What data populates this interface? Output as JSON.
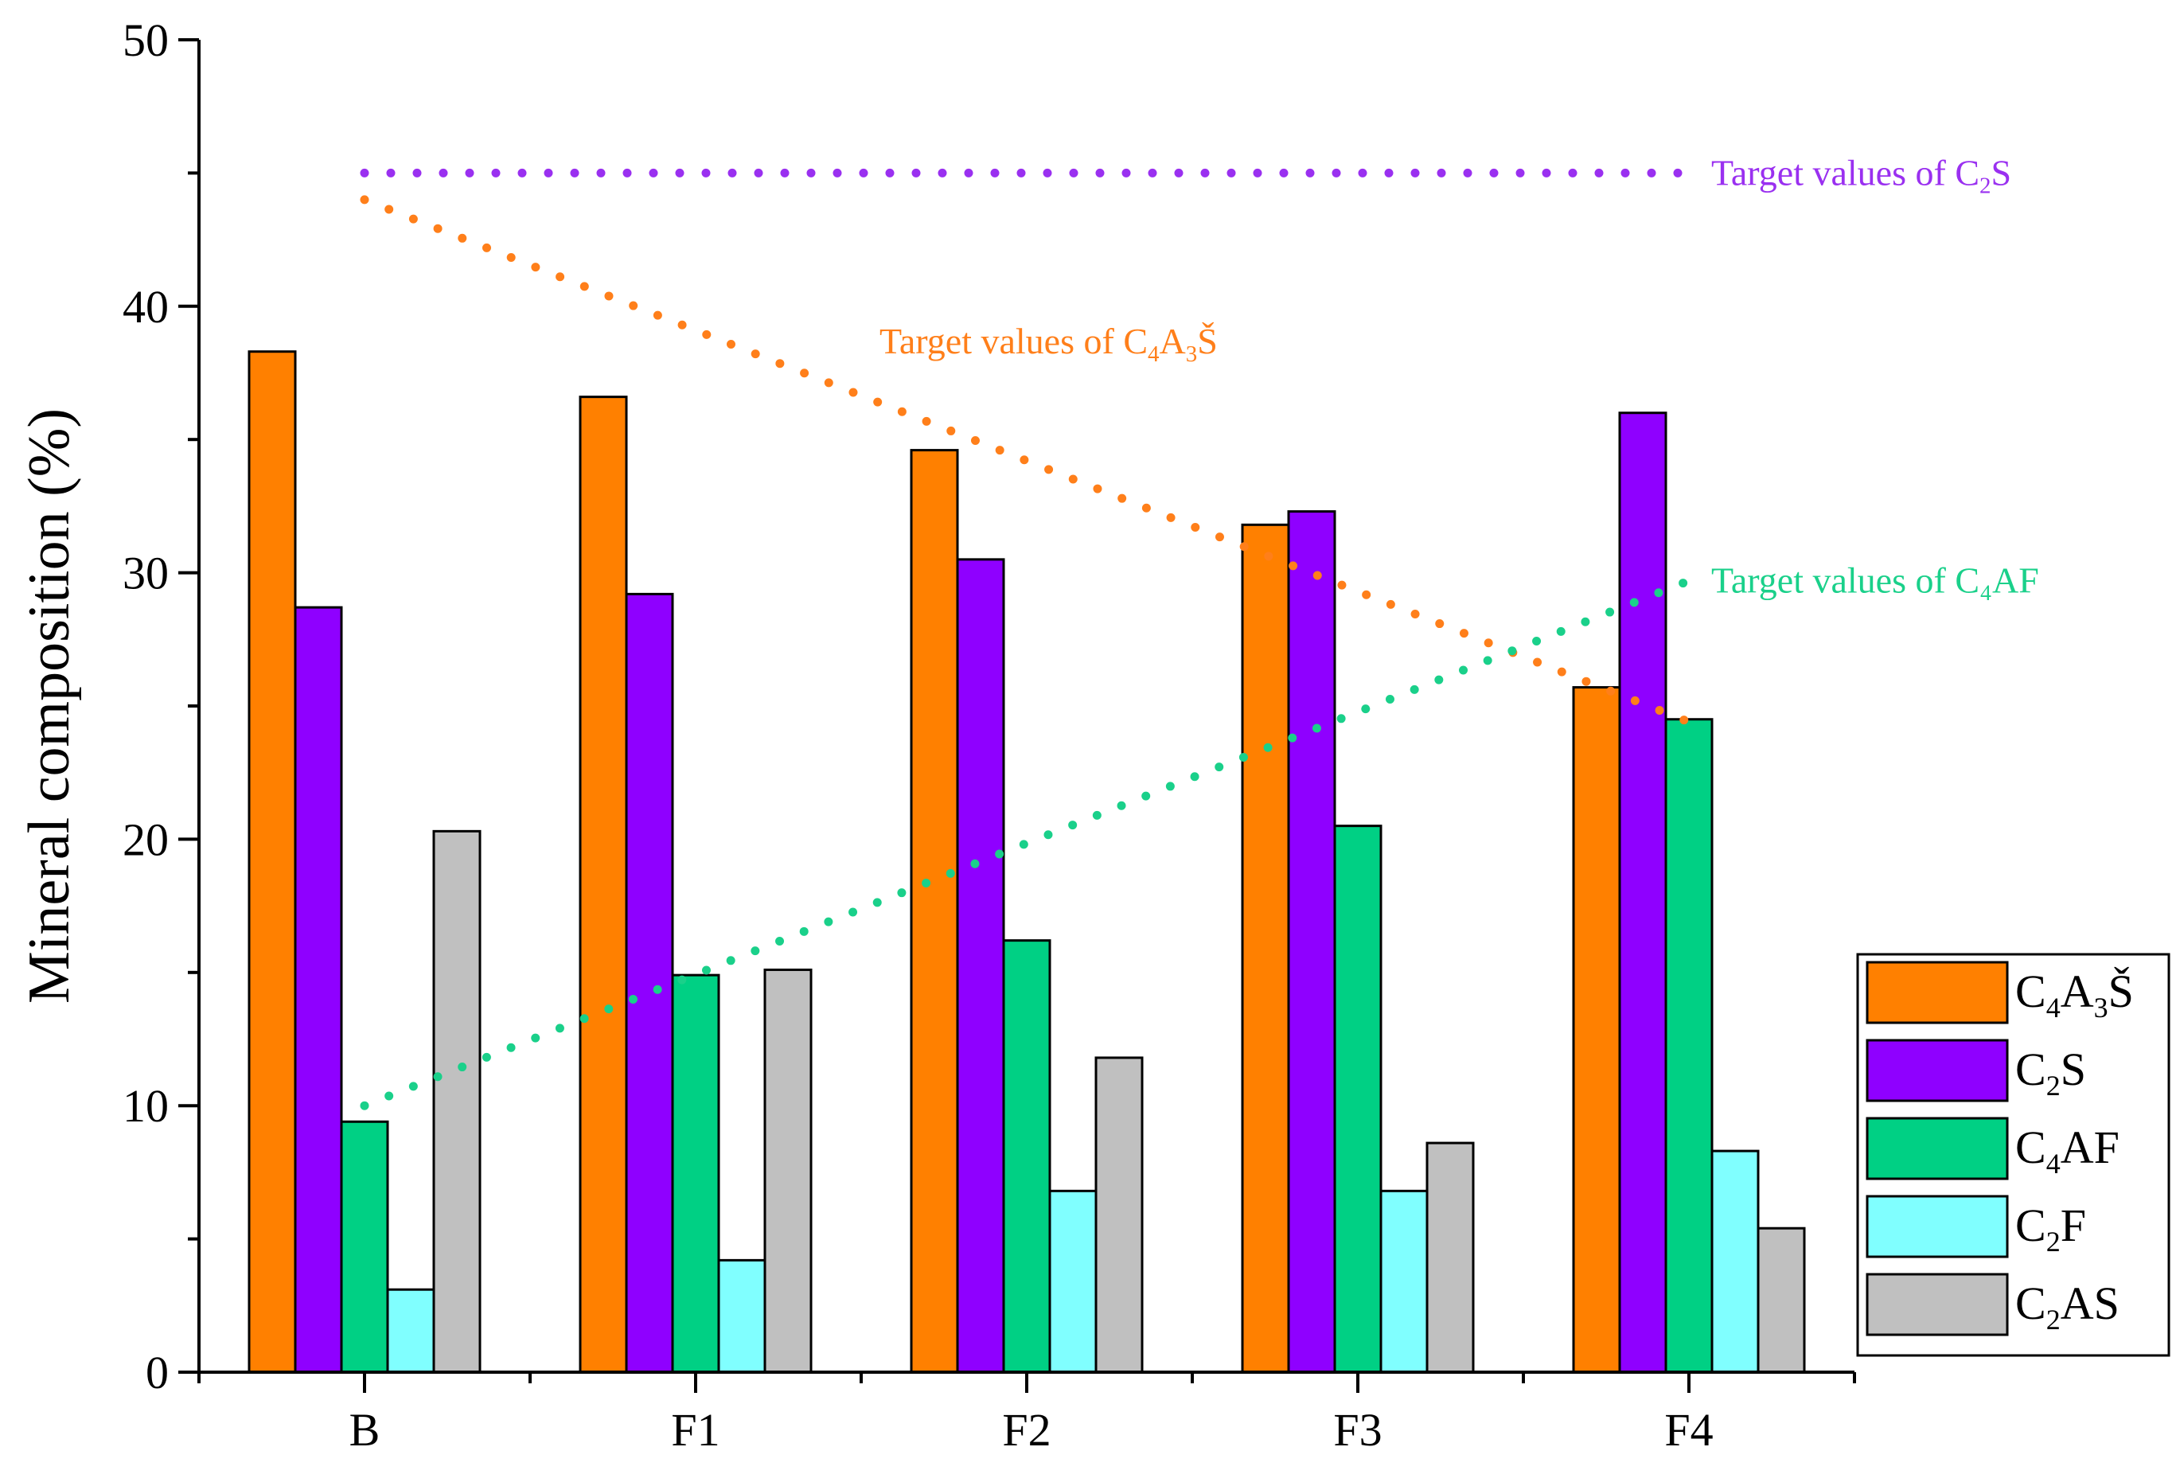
{
  "chart_data": {
    "type": "bar",
    "title": "",
    "xlabel": "",
    "ylabel": "Mineral composition (%)",
    "ylim": [
      0,
      50
    ],
    "yticks": [
      0,
      10,
      20,
      30,
      40,
      50
    ],
    "yticks_minor_step": 5,
    "grid": false,
    "legend_position": "bottom-right",
    "categories": [
      "B",
      "F1",
      "F2",
      "F3",
      "F4"
    ],
    "series": [
      {
        "name": "C4A3Š",
        "label_parts": [
          [
            "C",
            ""
          ],
          [
            "4",
            "sub"
          ],
          [
            "A",
            ""
          ],
          [
            "3",
            "sub"
          ],
          [
            "Š",
            ""
          ]
        ],
        "color": "#FF8000",
        "values": [
          38.3,
          36.6,
          34.6,
          31.8,
          25.7
        ]
      },
      {
        "name": "C2S",
        "label_parts": [
          [
            "C",
            ""
          ],
          [
            "2",
            "sub"
          ],
          [
            "S",
            ""
          ]
        ],
        "color": "#8F00FF",
        "values": [
          28.7,
          29.2,
          30.5,
          32.3,
          36.0
        ]
      },
      {
        "name": "C4AF",
        "label_parts": [
          [
            "C",
            ""
          ],
          [
            "4",
            "sub"
          ],
          [
            "AF",
            ""
          ]
        ],
        "color": "#00D084",
        "values": [
          9.4,
          14.9,
          16.2,
          20.5,
          24.5
        ]
      },
      {
        "name": "C2F",
        "label_parts": [
          [
            "C",
            ""
          ],
          [
            "2",
            "sub"
          ],
          [
            "F",
            ""
          ]
        ],
        "color": "#80FFFF",
        "values": [
          3.1,
          4.2,
          6.8,
          6.8,
          8.3
        ]
      },
      {
        "name": "C2AS",
        "label_parts": [
          [
            "C",
            ""
          ],
          [
            "2",
            "sub"
          ],
          [
            "AS",
            ""
          ]
        ],
        "color": "#C0C0C0",
        "values": [
          20.3,
          15.1,
          11.8,
          8.6,
          5.4
        ]
      }
    ],
    "target_lines": [
      {
        "name": "Target values of C2S",
        "label_parts": [
          [
            "Target values of C",
            ""
          ],
          [
            "2",
            "sub"
          ],
          [
            "S",
            ""
          ]
        ],
        "color": "#9A30F0",
        "from": {
          "x": "B",
          "y": 45.0
        },
        "to": {
          "x": "F4",
          "y": 45.0
        },
        "label_anchor": "end-right"
      },
      {
        "name": "Target values of C4A3Š",
        "label_parts": [
          [
            "Target values of C",
            ""
          ],
          [
            "4",
            "sub"
          ],
          [
            "A",
            ""
          ],
          [
            "3",
            "sub"
          ],
          [
            "Š",
            ""
          ]
        ],
        "color": "#FF7F1A",
        "from": {
          "x": "B",
          "y": 44.0
        },
        "to": {
          "x": "F4",
          "y": 24.4
        },
        "label_anchor": "middle-above"
      },
      {
        "name": "Target values of  C4AF",
        "label_parts": [
          [
            "Target values of  C₄AF",
            ""
          ]
        ],
        "color": "#1AD08A",
        "from": {
          "x": "B",
          "y": 10.0
        },
        "to": {
          "x": "F4",
          "y": 29.7
        },
        "label_anchor": "end-right"
      }
    ]
  }
}
